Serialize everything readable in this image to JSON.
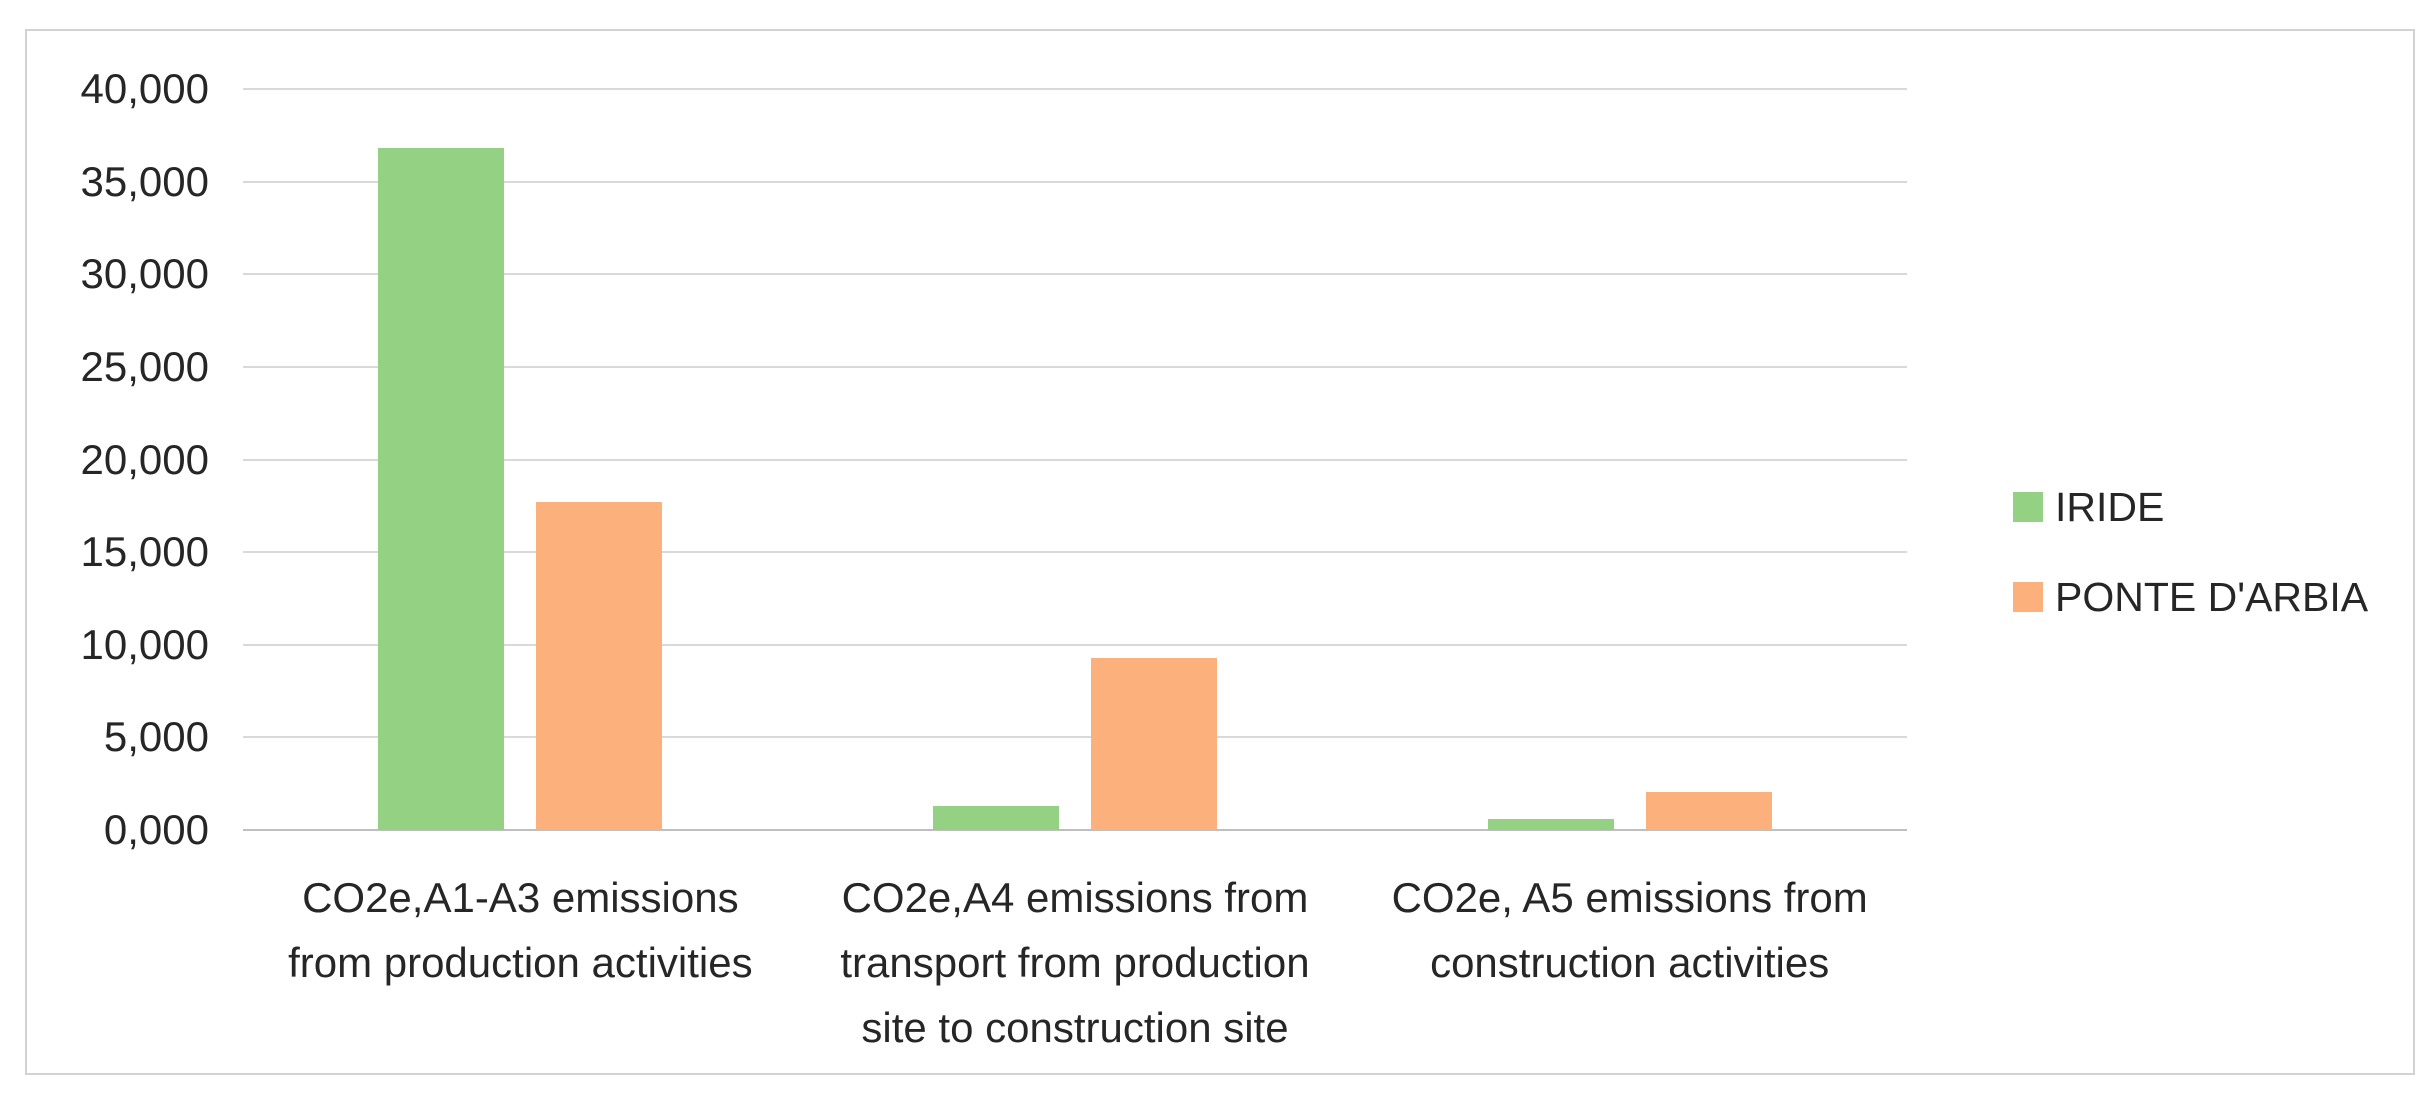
{
  "chart_data": {
    "type": "bar",
    "title": "",
    "xlabel": "",
    "ylabel": "",
    "categories": [
      "CO2e,A1-A3 emissions from production activities",
      "CO2e,A4 emissions from transport from production site to construction site",
      "CO2e, A5 emissions from construction activities"
    ],
    "category_lines": [
      [
        "CO2e,A1-A3 emissions",
        "from production activities"
      ],
      [
        "CO2e,A4 emissions from",
        "transport from production",
        "site to construction site"
      ],
      [
        "CO2e, A5 emissions from",
        "construction activities"
      ]
    ],
    "series": [
      {
        "name": "IRIDE",
        "color": "#94D182",
        "values": [
          36800,
          1300,
          600
        ]
      },
      {
        "name": "PONTE D'ARBIA",
        "color": "#FCB17D",
        "values": [
          17700,
          9300,
          2050
        ]
      }
    ],
    "ylim": [
      0,
      40000
    ],
    "ytick_interval": 5000,
    "ytick_labels": [
      "0,000",
      "5,000",
      "10,000",
      "15,000",
      "20,000",
      "25,000",
      "30,000",
      "35,000",
      "40,000"
    ],
    "grid": true,
    "legend_position": "right"
  },
  "colors": {
    "background": "#FFFFFF",
    "frame_border": "#D2D2D2",
    "gridline": "#D9D9D9",
    "baseline": "#BFBFBF",
    "text": "#262626"
  }
}
